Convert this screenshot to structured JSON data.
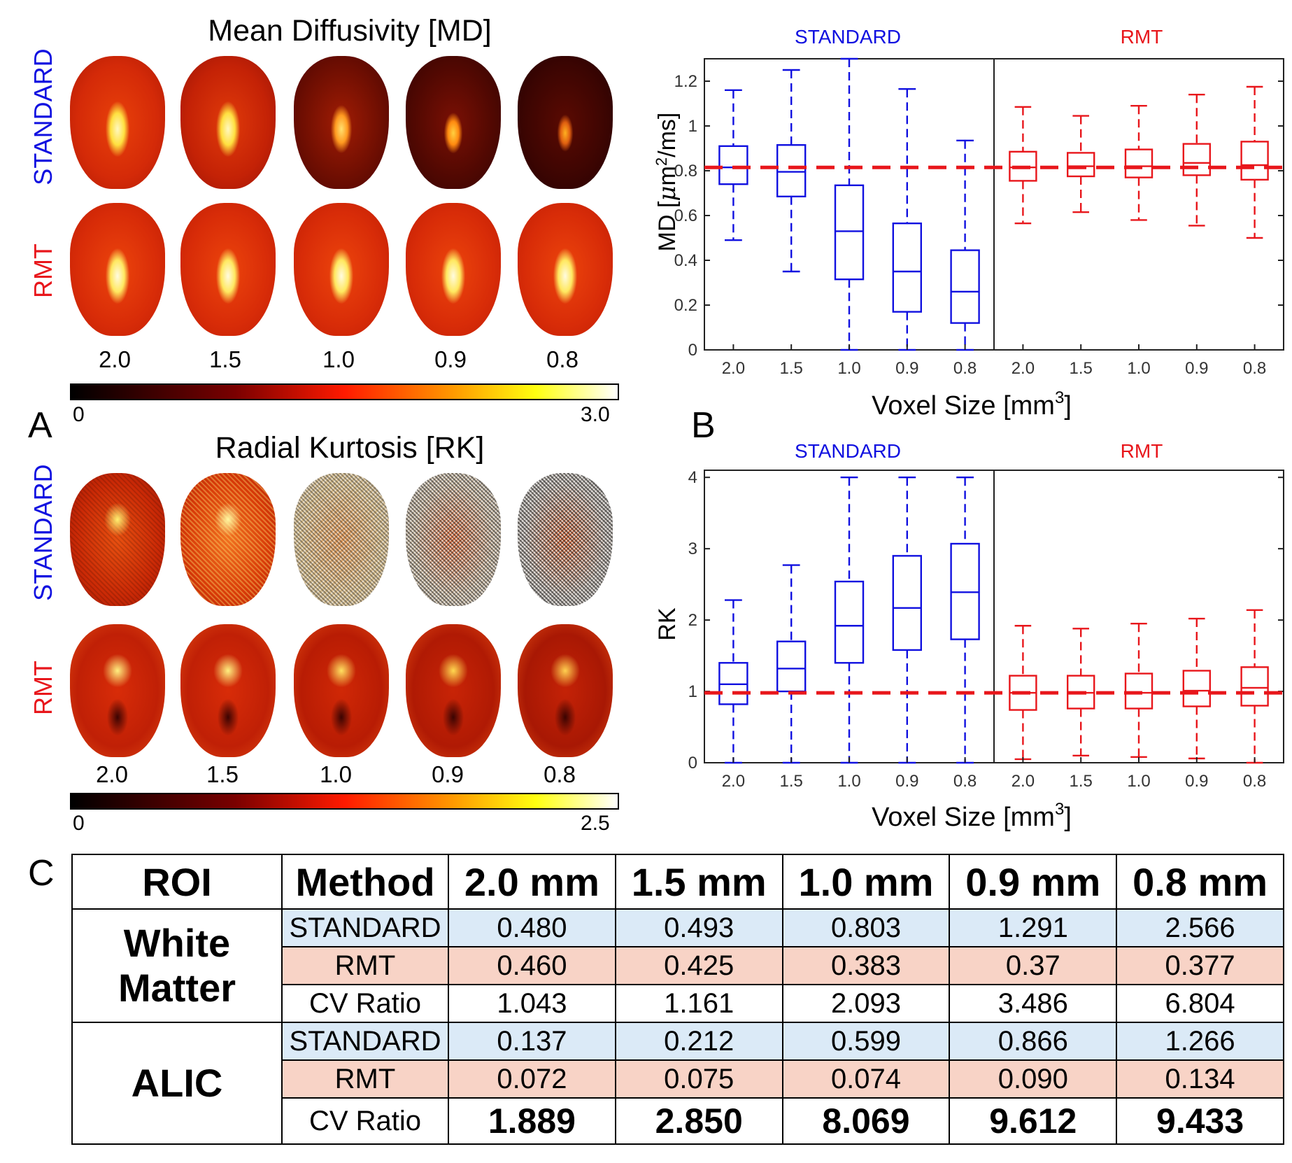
{
  "panels": {
    "a": "A",
    "b": "B",
    "c": "C"
  },
  "map_md": {
    "title": "Mean Diffusivity [MD]",
    "row_standard": "STANDARD",
    "row_rmt": "RMT",
    "voxel_labels": [
      "2.0",
      "1.5",
      "1.0",
      "0.9",
      "0.8"
    ],
    "cbar_min": "0",
    "cbar_max": "3.0"
  },
  "map_rk": {
    "title": "Radial Kurtosis [RK]",
    "row_standard": "STANDARD",
    "row_rmt": "RMT",
    "voxel_labels": [
      "2.0",
      "1.5",
      "1.0",
      "0.9",
      "0.8"
    ],
    "cbar_min": "0",
    "cbar_max": "2.5"
  },
  "colors": {
    "standard": "#1010e0",
    "rmt": "#e8161b",
    "std_row": "#dbeaf7",
    "rmt_row": "#f8d3c6"
  },
  "chart_data": [
    {
      "type": "box",
      "title_left": "STANDARD",
      "title_right": "RMT",
      "ylabel_pre": "MD [",
      "ylabel_mu": "μ",
      "ylabel_m": "m",
      "ylabel_sup": "2",
      "ylabel_post": "/ms]",
      "xlabel_pre": "Voxel Size [mm",
      "xlabel_sup": "3",
      "xlabel_post": "]",
      "ylim": [
        0,
        1.3
      ],
      "yticks": [
        "0",
        "0.2",
        "0.4",
        "0.6",
        "0.8",
        "1",
        "1.2"
      ],
      "ytick_values": [
        0,
        0.2,
        0.4,
        0.6,
        0.8,
        1.0,
        1.2
      ],
      "reference_line": 0.815,
      "categories": [
        "2.0",
        "1.5",
        "1.0",
        "0.9",
        "0.8"
      ],
      "series": [
        {
          "name": "STANDARD",
          "boxes": [
            {
              "min": 0.49,
              "q1": 0.74,
              "median": 0.815,
              "q3": 0.91,
              "max": 1.16
            },
            {
              "min": 0.35,
              "q1": 0.685,
              "median": 0.795,
              "q3": 0.915,
              "max": 1.25
            },
            {
              "min": 0.0,
              "q1": 0.315,
              "median": 0.53,
              "q3": 0.735,
              "max": 1.3
            },
            {
              "min": 0.0,
              "q1": 0.17,
              "median": 0.35,
              "q3": 0.565,
              "max": 1.165
            },
            {
              "min": 0.0,
              "q1": 0.12,
              "median": 0.26,
              "q3": 0.445,
              "max": 0.935
            }
          ]
        },
        {
          "name": "RMT",
          "boxes": [
            {
              "min": 0.565,
              "q1": 0.755,
              "median": 0.815,
              "q3": 0.885,
              "max": 1.085
            },
            {
              "min": 0.615,
              "q1": 0.775,
              "median": 0.82,
              "q3": 0.88,
              "max": 1.045
            },
            {
              "min": 0.58,
              "q1": 0.77,
              "median": 0.82,
              "q3": 0.895,
              "max": 1.09
            },
            {
              "min": 0.555,
              "q1": 0.78,
              "median": 0.835,
              "q3": 0.92,
              "max": 1.14
            },
            {
              "min": 0.5,
              "q1": 0.76,
              "median": 0.825,
              "q3": 0.93,
              "max": 1.175
            }
          ]
        }
      ]
    },
    {
      "type": "box",
      "title_left": "STANDARD",
      "title_right": "RMT",
      "ylabel": "RK",
      "xlabel_pre": "Voxel Size [mm",
      "xlabel_sup": "3",
      "xlabel_post": "]",
      "ylim": [
        0,
        4.1
      ],
      "yticks": [
        "0",
        "1",
        "2",
        "3",
        "4"
      ],
      "ytick_values": [
        0,
        1,
        2,
        3,
        4
      ],
      "reference_line": 0.98,
      "categories": [
        "2.0",
        "1.5",
        "1.0",
        "0.9",
        "0.8"
      ],
      "series": [
        {
          "name": "STANDARD",
          "boxes": [
            {
              "min": 0.0,
              "q1": 0.82,
              "median": 1.1,
              "q3": 1.4,
              "max": 2.28
            },
            {
              "min": 0.0,
              "q1": 1.0,
              "median": 1.32,
              "q3": 1.7,
              "max": 2.77
            },
            {
              "min": 0.0,
              "q1": 1.4,
              "median": 1.92,
              "q3": 2.54,
              "max": 4.0
            },
            {
              "min": 0.0,
              "q1": 1.58,
              "median": 2.17,
              "q3": 2.9,
              "max": 4.0
            },
            {
              "min": 0.0,
              "q1": 1.73,
              "median": 2.39,
              "q3": 3.07,
              "max": 4.0
            }
          ]
        },
        {
          "name": "RMT",
          "boxes": [
            {
              "min": 0.05,
              "q1": 0.74,
              "median": 0.98,
              "q3": 1.22,
              "max": 1.92
            },
            {
              "min": 0.1,
              "q1": 0.76,
              "median": 0.98,
              "q3": 1.22,
              "max": 1.88
            },
            {
              "min": 0.08,
              "q1": 0.76,
              "median": 0.98,
              "q3": 1.25,
              "max": 1.95
            },
            {
              "min": 0.06,
              "q1": 0.79,
              "median": 1.01,
              "q3": 1.29,
              "max": 2.02
            },
            {
              "min": 0.0,
              "q1": 0.8,
              "median": 1.05,
              "q3": 1.34,
              "max": 2.14
            }
          ]
        }
      ]
    }
  ],
  "table": {
    "headers": [
      "ROI",
      "Method",
      "2.0 mm",
      "1.5 mm",
      "1.0 mm",
      "0.9 mm",
      "0.8 mm"
    ],
    "groups": [
      {
        "roi_line1": "White",
        "roi_line2": "Matter",
        "rows": [
          {
            "method": "STANDARD",
            "values": [
              "0.480",
              "0.493",
              "0.803",
              "1.291",
              "2.566"
            ]
          },
          {
            "method": "RMT",
            "values": [
              "0.460",
              "0.425",
              "0.383",
              "0.37",
              "0.377"
            ]
          },
          {
            "method": "CV Ratio",
            "values": [
              "1.043",
              "1.161",
              "2.093",
              "3.486",
              "6.804"
            ]
          }
        ]
      },
      {
        "roi_line1": "ALIC",
        "rows": [
          {
            "method": "STANDARD",
            "values": [
              "0.137",
              "0.212",
              "0.599",
              "0.866",
              "1.266"
            ]
          },
          {
            "method": "RMT",
            "values": [
              "0.072",
              "0.075",
              "0.074",
              "0.090",
              "0.134"
            ]
          },
          {
            "method": "CV Ratio",
            "values": [
              "1.889",
              "2.850",
              "8.069",
              "9.612",
              "9.433"
            ]
          }
        ]
      }
    ]
  }
}
